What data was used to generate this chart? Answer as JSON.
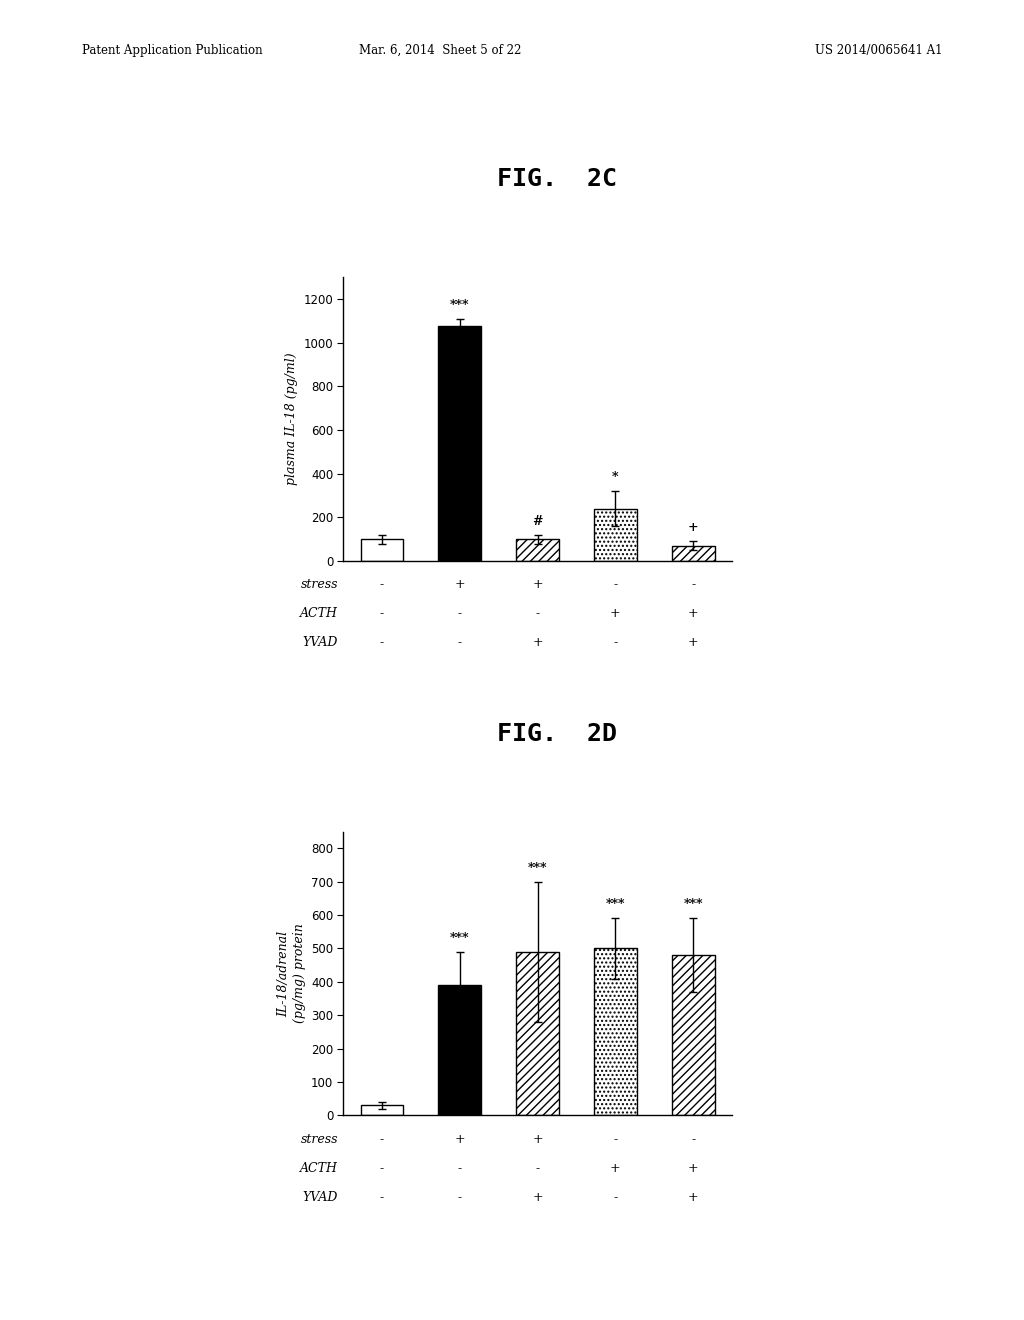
{
  "fig2c": {
    "title": "FIG.  2C",
    "ylabel": "plasma IL-18 (pg/ml)",
    "ylim": [
      0,
      1300
    ],
    "yticks": [
      0,
      200,
      400,
      600,
      800,
      1000,
      1200
    ],
    "bar_values": [
      100,
      1075,
      100,
      240,
      70
    ],
    "bar_errors": [
      20,
      35,
      20,
      80,
      20
    ],
    "bar_colors": [
      "white",
      "black",
      "white",
      "white",
      "white"
    ],
    "bar_hatches": [
      "",
      "",
      "////",
      "....",
      "////"
    ],
    "bar_edgecolors": [
      "black",
      "black",
      "black",
      "black",
      "black"
    ],
    "annotations": [
      "",
      "***",
      "#",
      "*",
      "+"
    ],
    "stress": [
      "-",
      "+",
      "+",
      "-",
      "-"
    ],
    "acth": [
      "-",
      "-",
      "-",
      "+",
      "+"
    ],
    "yvad": [
      "-",
      "-",
      "+",
      "-",
      "+"
    ]
  },
  "fig2d": {
    "title": "FIG.  2D",
    "ylabel": "IL-18/adrenal\n(pg/mg) protein",
    "ylim": [
      0,
      850
    ],
    "yticks": [
      0,
      100,
      200,
      300,
      400,
      500,
      600,
      700,
      800
    ],
    "bar_values": [
      30,
      390,
      490,
      500,
      480
    ],
    "bar_errors": [
      10,
      100,
      210,
      90,
      110
    ],
    "bar_colors": [
      "white",
      "black",
      "white",
      "white",
      "white"
    ],
    "bar_hatches": [
      "",
      "",
      "////",
      "....",
      "////"
    ],
    "bar_edgecolors": [
      "black",
      "black",
      "black",
      "black",
      "black"
    ],
    "annotations": [
      "",
      "***",
      "***",
      "***",
      "***"
    ],
    "stress": [
      "-",
      "+",
      "+",
      "-",
      "-"
    ],
    "acth": [
      "-",
      "-",
      "-",
      "+",
      "+"
    ],
    "yvad": [
      "-",
      "-",
      "+",
      "-",
      "+"
    ]
  },
  "header_left": "Patent Application Publication",
  "header_mid": "Mar. 6, 2014  Sheet 5 of 22",
  "header_right": "US 2014/0065641 A1",
  "background_color": "#ffffff"
}
